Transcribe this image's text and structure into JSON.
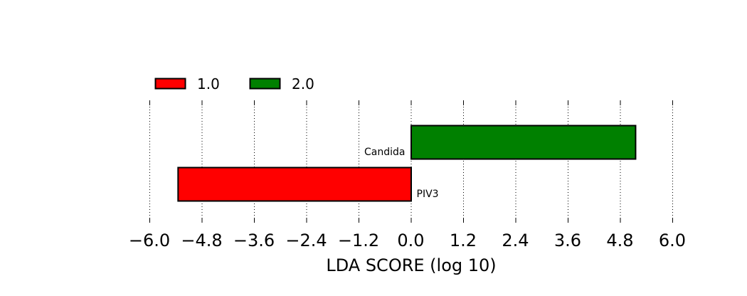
{
  "chart_data": {
    "type": "bar",
    "orientation": "horizontal",
    "xlabel": "LDA SCORE (log 10)",
    "xlim": [
      -6.0,
      6.0
    ],
    "xticks": [
      "−6.0",
      "−4.8",
      "−3.6",
      "−2.4",
      "−1.2",
      "0.0",
      "1.2",
      "2.4",
      "3.6",
      "4.8",
      "6.0"
    ],
    "xtick_values": [
      -6.0,
      -4.8,
      -3.6,
      -2.4,
      -1.2,
      0.0,
      1.2,
      2.4,
      3.6,
      4.8,
      6.0
    ],
    "grid": "vertical dotted",
    "legend_placement": "top-left",
    "legend": [
      {
        "label": "1.0",
        "color": "#ff0000"
      },
      {
        "label": "2.0",
        "color": "#008000"
      }
    ],
    "bars": [
      {
        "feature": "Candida",
        "class": "2.0",
        "value": 5.15,
        "color": "#008000"
      },
      {
        "feature": "PIV3",
        "class": "1.0",
        "value": -5.35,
        "color": "#ff0000"
      }
    ]
  }
}
